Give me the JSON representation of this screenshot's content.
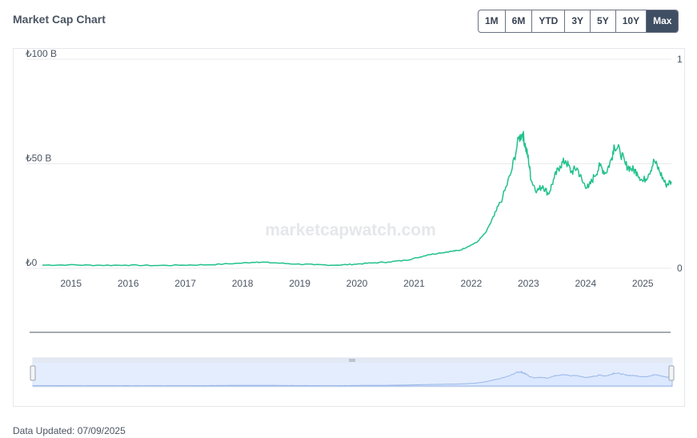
{
  "header": {
    "title": "Market Cap Chart"
  },
  "range_buttons": [
    {
      "label": "1M",
      "active": false
    },
    {
      "label": "6M",
      "active": false
    },
    {
      "label": "YTD",
      "active": false
    },
    {
      "label": "3Y",
      "active": false
    },
    {
      "label": "5Y",
      "active": false
    },
    {
      "label": "10Y",
      "active": false
    },
    {
      "label": "Max",
      "active": true
    }
  ],
  "footer": {
    "updated_label": "Data Updated: 07/09/2025"
  },
  "chart_data": {
    "type": "line",
    "title": "",
    "watermark": "marketcapwatch.com",
    "y_ticks": [
      "₺100 B",
      "₺50 B",
      "₺0"
    ],
    "y_tick_values": [
      100,
      50,
      0
    ],
    "y2_ticks": [
      "1",
      "0"
    ],
    "x_ticks": [
      "2015",
      "2016",
      "2017",
      "2018",
      "2019",
      "2020",
      "2021",
      "2022",
      "2023",
      "2024",
      "2025"
    ],
    "x_tick_values": [
      2015.05,
      2016.05,
      2017.05,
      2018.05,
      2019.05,
      2020.05,
      2021.05,
      2022.05,
      2023.05,
      2024.05,
      2025.05
    ],
    "xlim": [
      2014.55,
      2025.55
    ],
    "ylim": [
      0,
      100
    ],
    "y_unit": "billion TRY",
    "line_color": "#22c18a",
    "navigator_fill": "#dbe8ff",
    "series": [
      {
        "values": [
          [
            2014.55,
            1.5
          ],
          [
            2015.0,
            1.6
          ],
          [
            2015.5,
            1.4
          ],
          [
            2016.0,
            1.5
          ],
          [
            2016.5,
            1.3
          ],
          [
            2017.0,
            1.5
          ],
          [
            2017.5,
            1.7
          ],
          [
            2018.0,
            2.4
          ],
          [
            2018.3,
            3.0
          ],
          [
            2018.6,
            2.6
          ],
          [
            2019.0,
            2.0
          ],
          [
            2019.3,
            1.7
          ],
          [
            2019.7,
            1.5
          ],
          [
            2020.0,
            1.9
          ],
          [
            2020.3,
            2.5
          ],
          [
            2020.6,
            3.0
          ],
          [
            2020.9,
            3.8
          ],
          [
            2021.1,
            5.0
          ],
          [
            2021.3,
            6.5
          ],
          [
            2021.5,
            7.3
          ],
          [
            2021.7,
            8.1
          ],
          [
            2021.85,
            8.6
          ],
          [
            2022.0,
            10.5
          ],
          [
            2022.15,
            12.5
          ],
          [
            2022.3,
            17.0
          ],
          [
            2022.45,
            25.0
          ],
          [
            2022.6,
            34.0
          ],
          [
            2022.75,
            46.0
          ],
          [
            2022.88,
            62.0
          ],
          [
            2022.95,
            64.5
          ],
          [
            2023.0,
            58.0
          ],
          [
            2023.05,
            52.0
          ],
          [
            2023.1,
            42.0
          ],
          [
            2023.2,
            37.0
          ],
          [
            2023.3,
            39.5
          ],
          [
            2023.4,
            35.5
          ],
          [
            2023.5,
            43.0
          ],
          [
            2023.6,
            49.0
          ],
          [
            2023.7,
            51.5
          ],
          [
            2023.8,
            46.0
          ],
          [
            2023.9,
            48.0
          ],
          [
            2024.0,
            41.0
          ],
          [
            2024.1,
            38.5
          ],
          [
            2024.2,
            44.0
          ],
          [
            2024.3,
            49.0
          ],
          [
            2024.4,
            45.5
          ],
          [
            2024.5,
            52.0
          ],
          [
            2024.55,
            59.0
          ],
          [
            2024.65,
            56.0
          ],
          [
            2024.75,
            49.5
          ],
          [
            2024.85,
            47.5
          ],
          [
            2024.95,
            46.0
          ],
          [
            2025.05,
            41.5
          ],
          [
            2025.15,
            45.0
          ],
          [
            2025.25,
            51.5
          ],
          [
            2025.35,
            46.0
          ],
          [
            2025.45,
            40.0
          ],
          [
            2025.55,
            41.5
          ]
        ]
      }
    ]
  }
}
